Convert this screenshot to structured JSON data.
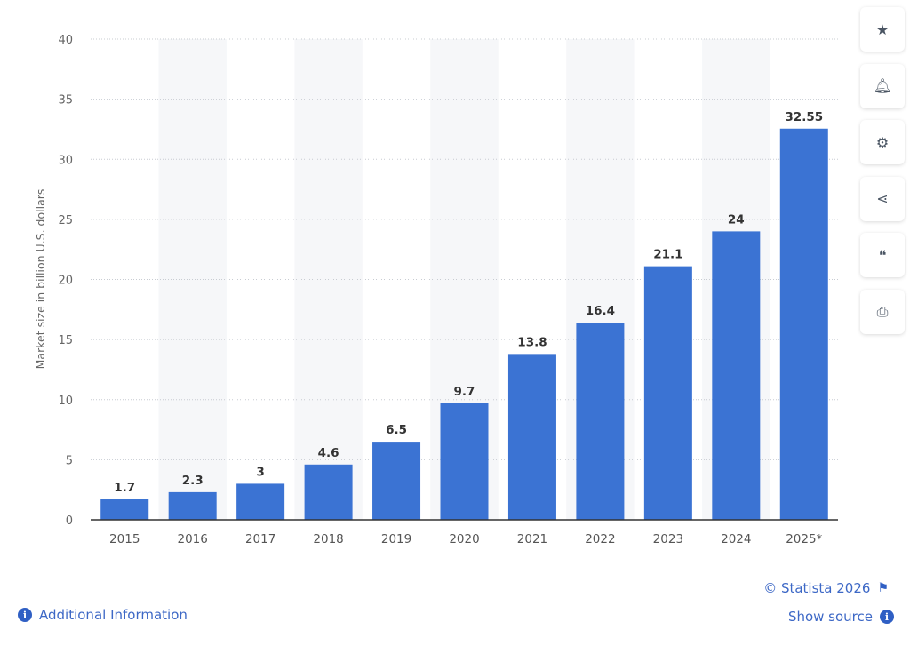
{
  "chart_data": {
    "type": "bar",
    "categories": [
      "2015",
      "2016",
      "2017",
      "2018",
      "2019",
      "2020",
      "2021",
      "2022",
      "2023",
      "2024",
      "2025*"
    ],
    "values": [
      1.7,
      2.3,
      3,
      4.6,
      6.5,
      9.7,
      13.8,
      16.4,
      21.1,
      24,
      32.55
    ],
    "value_labels": [
      "1.7",
      "2.3",
      "3",
      "4.6",
      "6.5",
      "9.7",
      "13.8",
      "16.4",
      "21.1",
      "24",
      "32.55"
    ],
    "ylabel": "Market size in billion U.S. dollars",
    "xlabel": "",
    "ylim": [
      0,
      40
    ],
    "yticks": [
      0,
      5,
      10,
      15,
      20,
      25,
      30,
      35,
      40
    ],
    "grid": true,
    "bar_color": "#3b73d3"
  },
  "toolbar": [
    {
      "icon": "star-icon",
      "glyph": "★"
    },
    {
      "icon": "bell-icon",
      "glyph": "🔔︎"
    },
    {
      "icon": "gear-icon",
      "glyph": "⚙"
    },
    {
      "icon": "share-icon",
      "glyph": "⋖"
    },
    {
      "icon": "quote-icon",
      "glyph": "❝"
    },
    {
      "icon": "print-icon",
      "glyph": "⎙"
    }
  ],
  "footer": {
    "additional_info": "Additional Information",
    "copyright": "© Statista 2026",
    "show_source": "Show source"
  }
}
